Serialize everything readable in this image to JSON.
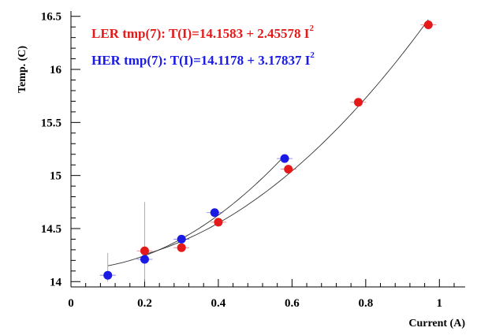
{
  "chart_data": {
    "type": "scatter",
    "title": "",
    "xlabel": "Current (A)",
    "ylabel": "Temp. (C)",
    "xlim": [
      0,
      1.07
    ],
    "ylim": [
      13.95,
      16.55
    ],
    "x_ticks": [
      0,
      0.2,
      0.4,
      0.6,
      0.8,
      1
    ],
    "x_tick_labels": [
      "0",
      "0.2",
      "0.4",
      "0.6",
      "0.8",
      "1"
    ],
    "y_ticks": [
      14,
      14.5,
      15,
      15.5,
      16,
      16.5
    ],
    "y_tick_labels": [
      "14",
      "14.5",
      "15",
      "15.5",
      "16",
      "16.5"
    ],
    "grid": false,
    "series": [
      {
        "name": "LER tmp(7)",
        "color": "#e41a1a",
        "x": [
          0.2,
          0.3,
          0.4,
          0.59,
          0.78,
          0.97
        ],
        "y": [
          14.29,
          14.32,
          14.56,
          15.06,
          15.69,
          16.42
        ],
        "fit": {
          "a": 14.1583,
          "b": 2.45578
        },
        "annotation": {
          "prefix": "LER tmp(7):  T(I)=14.1583 + 2.45578 I",
          "superscript": "2"
        }
      },
      {
        "name": "HER tmp(7)",
        "color": "#1a1ae4",
        "x": [
          0.1,
          0.2,
          0.3,
          0.39,
          0.58
        ],
        "y": [
          14.06,
          14.21,
          14.4,
          14.65,
          15.16
        ],
        "fit": {
          "a": 14.1178,
          "b": 3.17837
        },
        "annotation": {
          "prefix": "HER tmp(7):  T(I)=14.1178 + 3.17837 I",
          "superscript": "2"
        }
      }
    ]
  },
  "colors": {
    "axis": "#000000",
    "fit_line": "#333333",
    "error_bar": "#9a9a9a"
  }
}
